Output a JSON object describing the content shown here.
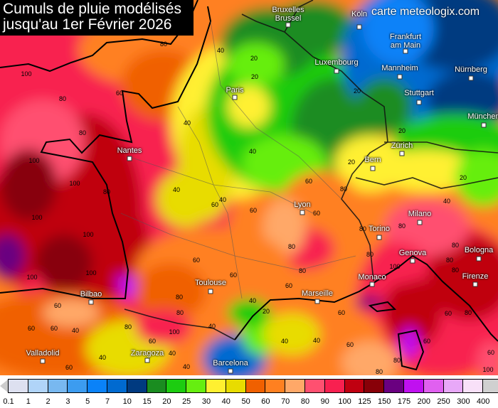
{
  "title_line1": "Cumuls de pluie modélisés",
  "title_line2": "jusqu'au 1er Février 2026",
  "brand": "carte meteologix.com",
  "cities": [
    "Bruxelles\nBrussel",
    "Köln",
    "Frankfurt\nam Main",
    "Luxembourg",
    "Mannheim",
    "Nürnberg",
    "Stuttgart",
    "Paris",
    "München",
    "Nantes",
    "Zürich",
    "Bern",
    "Lyon",
    "Milano",
    "Torino",
    "Genova",
    "Bologna",
    "Monaco",
    "Firenze",
    "Toulouse",
    "Marseille",
    "Bilbao",
    "Zaragoza",
    "Valladolid",
    "Barcelona"
  ],
  "contour_labels": [
    "80",
    "40",
    "20",
    "20",
    "20",
    "100",
    "80",
    "60",
    "80",
    "100",
    "100",
    "100",
    "100",
    "100",
    "100",
    "80",
    "40",
    "40",
    "40",
    "40",
    "20",
    "20",
    "40",
    "20",
    "60",
    "80",
    "60",
    "60",
    "60",
    "80",
    "80",
    "80",
    "80",
    "80",
    "100",
    "80",
    "80",
    "60",
    "80",
    "80",
    "60",
    "60",
    "60",
    "80",
    "80",
    "100",
    "40",
    "20",
    "40",
    "40",
    "60",
    "80",
    "80",
    "40",
    "60",
    "60",
    "40",
    "60",
    "60",
    "60",
    "40",
    "40",
    "40",
    "60",
    "80",
    "100",
    "60",
    "60"
  ],
  "legend": {
    "ticks": [
      "0.1",
      "1",
      "2",
      "3",
      "5",
      "7",
      "10",
      "15",
      "20",
      "25",
      "30",
      "40",
      "50",
      "60",
      "70",
      "80",
      "90",
      "100",
      "125",
      "150",
      "175",
      "200",
      "250",
      "300",
      "400"
    ],
    "colors": [
      "#dde0f0",
      "#b0d4f8",
      "#78b8f0",
      "#3c9cf0",
      "#0a82f8",
      "#006ad0",
      "#003a80",
      "#1a8c20",
      "#1ccc10",
      "#66ee10",
      "#fff030",
      "#e8dc00",
      "#f06000",
      "#ff8020",
      "#ffa868",
      "#ff5070",
      "#f82050",
      "#c00010",
      "#880008",
      "#6a0080",
      "#c010f0",
      "#e060f0",
      "#e8a8f8",
      "#f8e0f8",
      "#d0d0d0"
    ]
  }
}
